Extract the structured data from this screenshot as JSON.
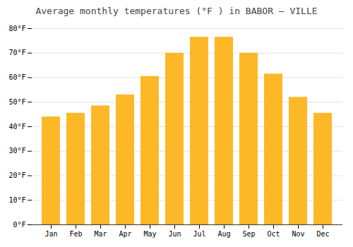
{
  "chart_data": {
    "type": "bar",
    "title": "Average monthly temperatures (°F ) in BABOR – VILLE",
    "categories": [
      "Jan",
      "Feb",
      "Mar",
      "Apr",
      "May",
      "Jun",
      "Jul",
      "Aug",
      "Sep",
      "Oct",
      "Nov",
      "Dec"
    ],
    "values": [
      44,
      45.5,
      48.5,
      53,
      60.5,
      70,
      76.5,
      76.5,
      70,
      61.5,
      52,
      45.5
    ],
    "color": "#FDB827",
    "ylim": [
      0,
      80
    ],
    "yticks": [
      {
        "value": 0,
        "label": "0°F"
      },
      {
        "value": 10,
        "label": "10°F"
      },
      {
        "value": 20,
        "label": "20°F"
      },
      {
        "value": 30,
        "label": "30°F"
      },
      {
        "value": 40,
        "label": "40°F"
      },
      {
        "value": 50,
        "label": "50°F"
      },
      {
        "value": 60,
        "label": "60°F"
      },
      {
        "value": 70,
        "label": "70°F"
      },
      {
        "value": 80,
        "label": "80°F"
      }
    ],
    "grid": true
  }
}
